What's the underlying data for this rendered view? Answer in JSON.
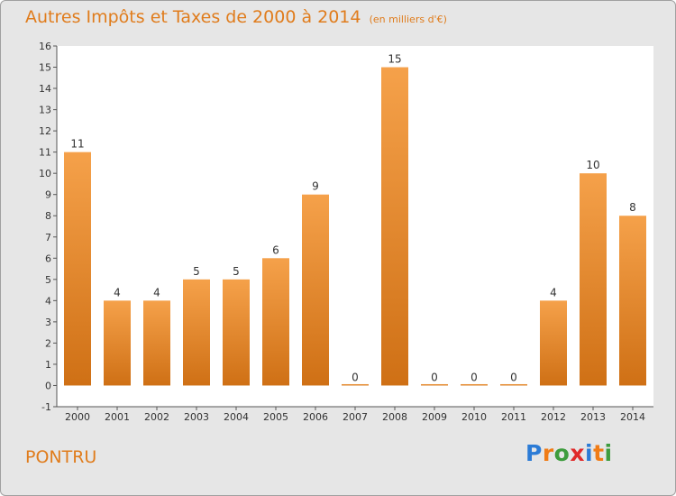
{
  "header": {
    "title": "Autres Impôts et Taxes de 2000 à 2014",
    "subtitle": "(en milliers d'€)"
  },
  "footer": {
    "commune": "PONTRU",
    "logo": {
      "letters": [
        "P",
        "r",
        "o",
        "x",
        "i",
        "t",
        "i"
      ],
      "colors": [
        "#2b7bd6",
        "#f07c16",
        "#3d9c3d",
        "#e02a2a",
        "#2b7bd6",
        "#f07c16",
        "#3d9c3d"
      ]
    }
  },
  "chart_data": {
    "type": "bar",
    "categories": [
      "2000",
      "2001",
      "2002",
      "2003",
      "2004",
      "2005",
      "2006",
      "2007",
      "2008",
      "2009",
      "2010",
      "2011",
      "2012",
      "2013",
      "2014"
    ],
    "values": [
      11,
      4,
      4,
      5,
      5,
      6,
      9,
      0,
      15,
      0,
      0,
      0,
      4,
      10,
      8
    ],
    "data_labels": [
      "11",
      "4",
      "4",
      "5",
      "5",
      "6",
      "9",
      "0",
      "15",
      "0",
      "0",
      "0",
      "4",
      "10",
      "8"
    ],
    "y_ticks": [
      -1,
      0,
      1,
      2,
      3,
      4,
      5,
      6,
      7,
      8,
      9,
      10,
      11,
      12,
      13,
      14,
      15,
      16
    ],
    "y_tick_labels": [
      "-1",
      "0",
      "1",
      "2",
      "3",
      "4",
      "5",
      "6",
      "7",
      "8",
      "9",
      "10",
      "11",
      "12",
      "13",
      "14",
      "15",
      "16"
    ],
    "ylim": [
      -1,
      16
    ],
    "xlabel": "",
    "ylabel": "",
    "grid": false,
    "legend": "none",
    "colors": {
      "bar_top": "#f5a14a",
      "bar_bottom": "#cf7015",
      "label": "#333333",
      "axis": "#555555",
      "plot_background": "#ffffff"
    }
  }
}
